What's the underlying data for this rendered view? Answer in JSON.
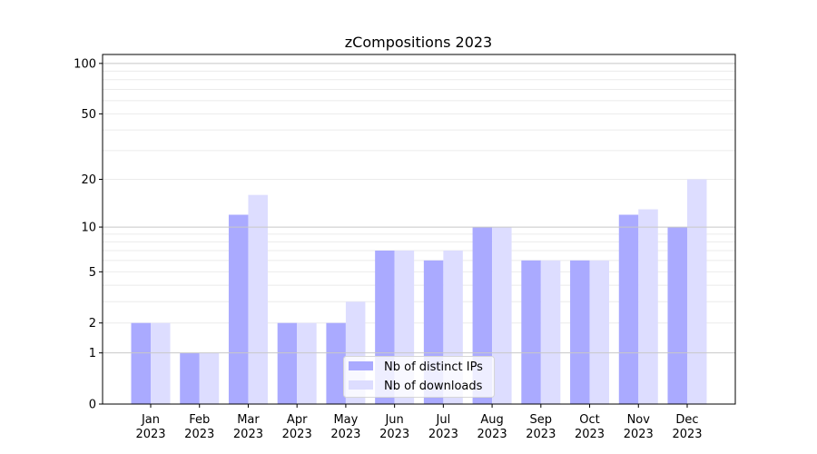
{
  "chart_data": {
    "type": "bar",
    "title": "zCompositions 2023",
    "xlabel": "",
    "ylabel": "",
    "yscale": "log(1+y)",
    "ylim": [
      0,
      113
    ],
    "yticks": [
      0,
      1,
      2,
      5,
      10,
      20,
      50,
      100
    ],
    "ytick_labels": [
      "0",
      "1",
      "2",
      "5",
      "10",
      "20",
      "50",
      "100"
    ],
    "major_grid": [
      1,
      10,
      100
    ],
    "minor_grid": [
      2,
      3,
      4,
      5,
      6,
      7,
      8,
      9,
      20,
      30,
      40,
      50,
      60,
      70,
      80,
      90
    ],
    "categories": [
      [
        "Jan",
        "2023"
      ],
      [
        "Feb",
        "2023"
      ],
      [
        "Mar",
        "2023"
      ],
      [
        "Apr",
        "2023"
      ],
      [
        "May",
        "2023"
      ],
      [
        "Jun",
        "2023"
      ],
      [
        "Jul",
        "2023"
      ],
      [
        "Aug",
        "2023"
      ],
      [
        "Sep",
        "2023"
      ],
      [
        "Oct",
        "2023"
      ],
      [
        "Nov",
        "2023"
      ],
      [
        "Dec",
        "2023"
      ]
    ],
    "series": [
      {
        "name": "Nb of distinct IPs",
        "color": "#aaaaff",
        "values": [
          2,
          1,
          12,
          2,
          2,
          7,
          6,
          10,
          6,
          6,
          12,
          10
        ]
      },
      {
        "name": "Nb of downloads",
        "color": "#ddddff",
        "values": [
          2,
          1,
          16,
          2,
          3,
          7,
          7,
          10,
          6,
          6,
          13,
          20
        ]
      }
    ],
    "legend_position": "lower-center"
  }
}
